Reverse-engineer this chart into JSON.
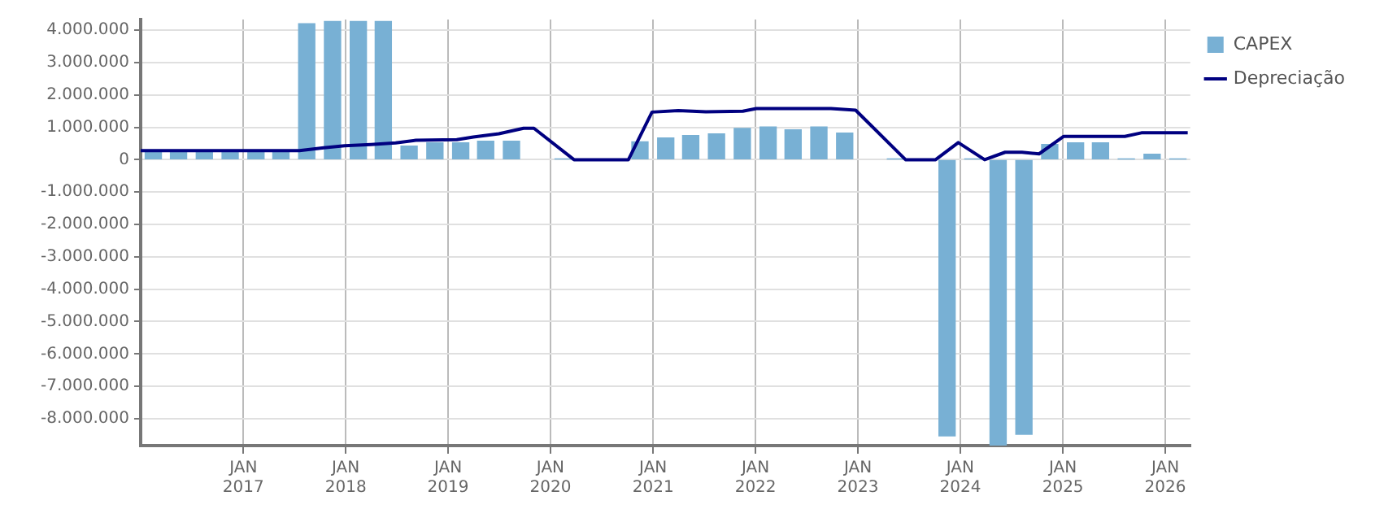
{
  "chart_data": {
    "type": "bar",
    "legend": "top right",
    "grid": true,
    "xlim": [
      "2016-01-01",
      "2026-03-31"
    ],
    "xticks": [
      {
        "value": "2017-01-01",
        "label": "JAN\n2017"
      },
      {
        "value": "2018-01-01",
        "label": "JAN\n2018"
      },
      {
        "value": "2019-01-01",
        "label": "JAN\n2019"
      },
      {
        "value": "2020-01-01",
        "label": "JAN\n2020"
      },
      {
        "value": "2021-01-01",
        "label": "JAN\n2021"
      },
      {
        "value": "2022-01-01",
        "label": "JAN\n2022"
      },
      {
        "value": "2023-01-01",
        "label": "JAN\n2023"
      },
      {
        "value": "2024-01-01",
        "label": "JAN\n2024"
      },
      {
        "value": "2025-01-01",
        "label": "JAN\n2025"
      },
      {
        "value": "2026-01-01",
        "label": "JAN\n2026"
      }
    ],
    "ylim": [
      -8830000,
      4330000
    ],
    "yticks": [
      {
        "value": -8000000,
        "label": "-8.000.000"
      },
      {
        "value": -7000000,
        "label": "-7.000.000"
      },
      {
        "value": -6000000,
        "label": "-6.000.000"
      },
      {
        "value": -5000000,
        "label": "-5.000.000"
      },
      {
        "value": -4000000,
        "label": "-4.000.000"
      },
      {
        "value": -3000000,
        "label": "-3.000.000"
      },
      {
        "value": -2000000,
        "label": "-2.000.000"
      },
      {
        "value": -1000000,
        "label": "-1.000.000"
      },
      {
        "value": 0,
        "label": "0"
      },
      {
        "value": 1000000,
        "label": "1.000.000"
      },
      {
        "value": 2000000,
        "label": "2.000.000"
      },
      {
        "value": 3000000,
        "label": "3.000.000"
      },
      {
        "value": 4000000,
        "label": "4.000.000"
      }
    ],
    "x": [
      "2016-02-15",
      "2016-05-15",
      "2016-08-15",
      "2016-11-15",
      "2017-02-15",
      "2017-05-15",
      "2017-08-15",
      "2017-11-15",
      "2018-02-15",
      "2018-05-15",
      "2018-08-15",
      "2018-11-15",
      "2019-02-15",
      "2019-05-15",
      "2019-08-15",
      "2019-11-15",
      "2020-02-15",
      "2020-05-15",
      "2020-08-15",
      "2020-11-15",
      "2021-02-15",
      "2021-05-15",
      "2021-08-15",
      "2021-11-15",
      "2022-02-15",
      "2022-05-15",
      "2022-08-15",
      "2022-11-15",
      "2023-02-15",
      "2023-05-15",
      "2023-08-15",
      "2023-11-15",
      "2024-02-15",
      "2024-05-15",
      "2024-08-15",
      "2024-11-15",
      "2025-02-15",
      "2025-05-15",
      "2025-08-15",
      "2025-11-15",
      "2026-02-15"
    ],
    "series": [
      {
        "name": "CAPEX",
        "color": "#78b0d4",
        "values": [
          250000,
          250000,
          250000,
          250000,
          250000,
          250000,
          4200000,
          4270000,
          4270000,
          4270000,
          420000,
          520000,
          520000,
          570000,
          570000,
          null,
          20000,
          null,
          null,
          550000,
          670000,
          750000,
          800000,
          970000,
          1010000,
          920000,
          1010000,
          820000,
          null,
          20000,
          null,
          -8530000,
          20000,
          -8830000,
          -8480000,
          470000,
          520000,
          520000,
          20000,
          170000,
          20000
        ]
      },
      {
        "name": "Depreciação",
        "type": "line",
        "color": "#000080",
        "marker": "none",
        "line_style": "solid",
        "x": [
          "2016-01-01",
          "2017-07-20",
          "2017-10-15",
          "2017-12-28",
          "2018-04-01",
          "2018-06-28",
          "2018-09-08",
          "2019-02-01",
          "2019-04-01",
          "2019-07-01",
          "2019-09-27",
          "2019-11-03",
          "2020-03-25",
          "2020-10-05",
          "2020-12-28",
          "2021-04-01",
          "2021-07-08",
          "2021-11-17",
          "2022-01-04",
          "2022-09-27",
          "2022-12-24",
          "2023-06-20",
          "2023-10-05",
          "2023-12-25",
          "2024-03-28",
          "2024-06-09",
          "2024-08-08",
          "2024-10-08",
          "2025-01-04",
          "2025-08-10",
          "2025-10-08",
          "2026-03-22"
        ],
        "values": [
          280000,
          280000,
          370000,
          430000,
          470000,
          520000,
          600000,
          620000,
          700000,
          800000,
          970000,
          970000,
          0,
          0,
          1470000,
          1520000,
          1480000,
          1500000,
          1580000,
          1580000,
          1530000,
          0,
          0,
          530000,
          0,
          230000,
          230000,
          180000,
          720000,
          720000,
          830000,
          830000
        ]
      }
    ]
  }
}
